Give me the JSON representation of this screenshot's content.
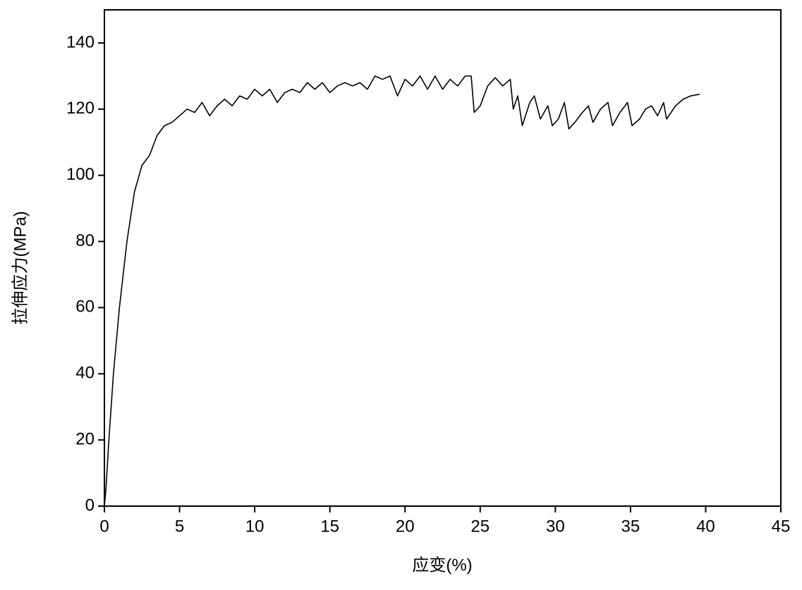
{
  "chart_data": {
    "type": "line",
    "x_label": "应变(%)",
    "y_label": "拉伸应力(MPa)",
    "xlim": [
      0,
      45
    ],
    "xticks": [
      0,
      5,
      10,
      15,
      20,
      25,
      30,
      35,
      40,
      45
    ],
    "ylim": [
      0,
      150
    ],
    "yticks": [
      0,
      20,
      40,
      60,
      80,
      100,
      120,
      140
    ],
    "grid": false,
    "color": "#000000",
    "x": [
      0,
      0.1,
      0.3,
      0.6,
      1,
      1.5,
      2,
      2.5,
      3,
      3.5,
      4,
      4.5,
      5,
      5.5,
      6,
      6.5,
      7,
      7.5,
      8,
      8.5,
      9,
      9.5,
      10,
      10.5,
      11,
      11.5,
      12,
      12.5,
      13,
      13.5,
      14,
      14.5,
      15,
      15.5,
      16,
      16.5,
      17,
      17.5,
      18,
      18.5,
      19,
      19.5,
      20,
      20.5,
      21,
      21.5,
      22,
      22.5,
      23,
      23.5,
      24,
      24.4,
      24.6,
      25,
      25.5,
      26,
      26.5,
      27,
      27.2,
      27.5,
      27.8,
      28.3,
      28.6,
      29,
      29.5,
      29.8,
      30.2,
      30.6,
      30.9,
      31.3,
      31.8,
      32.2,
      32.5,
      33,
      33.5,
      33.8,
      34.3,
      34.8,
      35.1,
      35.6,
      36,
      36.4,
      36.8,
      37.2,
      37.4,
      38,
      38.5,
      39,
      39.6
    ],
    "values": [
      0,
      5,
      20,
      40,
      60,
      80,
      95,
      103,
      106,
      112,
      115,
      116,
      118,
      120,
      119,
      122,
      118,
      121,
      123,
      121,
      124,
      123,
      126,
      124,
      126,
      122,
      125,
      126,
      125,
      128,
      126,
      128,
      125,
      127,
      128,
      127,
      128,
      126,
      130,
      129,
      130,
      124,
      129,
      127,
      130,
      126,
      130,
      126,
      129,
      127,
      130,
      130,
      119,
      121,
      127,
      129.5,
      127,
      129,
      120,
      124,
      115,
      122,
      124,
      117,
      121,
      115,
      117,
      122,
      114,
      116,
      119,
      121,
      116,
      120,
      122,
      115,
      119,
      122,
      115,
      117,
      120,
      121,
      118,
      122,
      117,
      121,
      123,
      124,
      124.5
    ]
  }
}
